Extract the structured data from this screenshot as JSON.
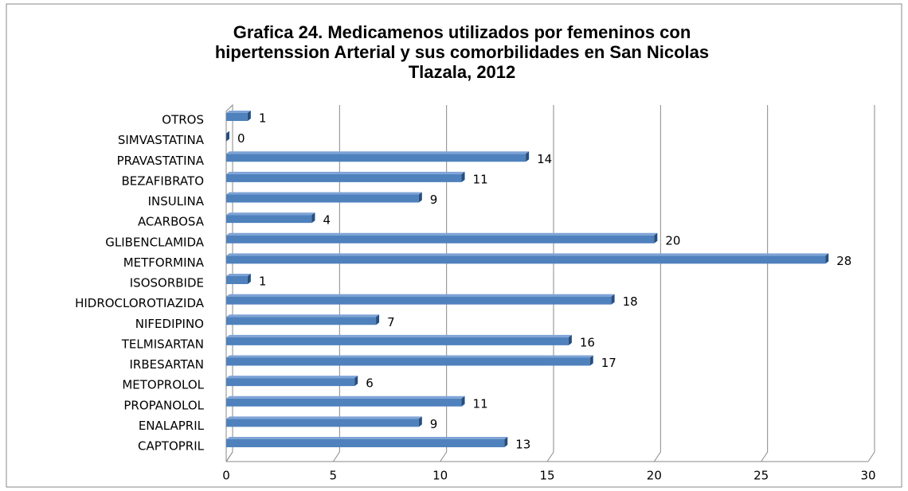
{
  "chart_data": {
    "type": "bar",
    "orientation": "horizontal",
    "title": [
      "Grafica 24. Medicamenos utilizados por femeninos  con",
      "hipertenssion Arterial  y sus comorbilidades en San Nicolas",
      "Tlazala, 2012"
    ],
    "categories": [
      "OTROS",
      "SIMVASTATINA",
      "PRAVASTATINA",
      "BEZAFIBRATO",
      "INSULINA",
      "ACARBOSA",
      "GLIBENCLAMIDA",
      "METFORMINA",
      "ISOSORBIDE",
      "HIDROCLOROTIAZIDA",
      "NIFEDIPINO",
      "TELMISARTAN",
      "IRBESARTAN",
      "METOPROLOL",
      "PROPANOLOL",
      "ENALAPRIL",
      "CAPTOPRIL"
    ],
    "values": [
      1,
      0,
      14,
      11,
      9,
      4,
      20,
      28,
      1,
      18,
      7,
      16,
      17,
      6,
      11,
      9,
      13
    ],
    "color": "#4f81bd",
    "xlim": [
      0,
      30
    ],
    "xticks": [
      0,
      5,
      10,
      15,
      20,
      25,
      30
    ],
    "grid": true
  }
}
